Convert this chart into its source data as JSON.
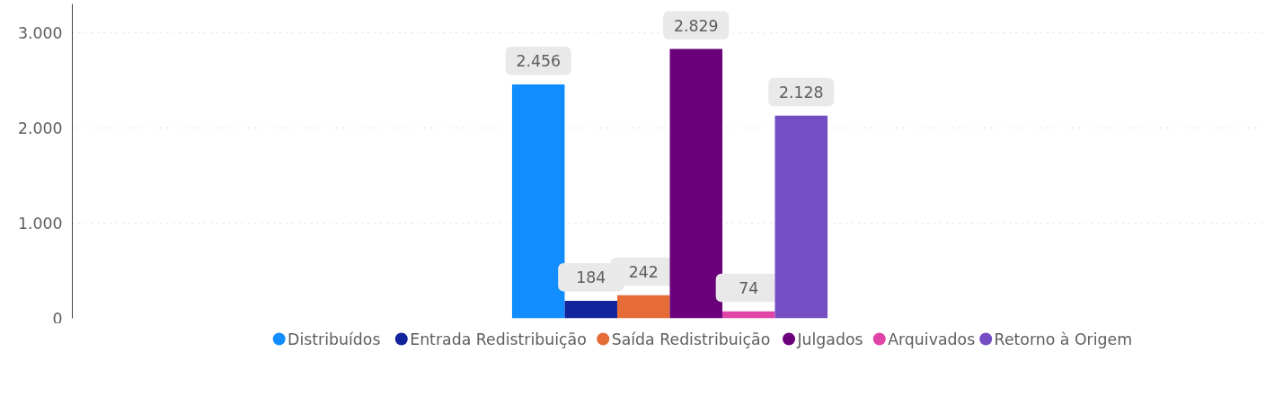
{
  "chart_data": {
    "type": "bar",
    "categories": [
      null
    ],
    "series": [
      {
        "name": "Distribuídos",
        "color": "#118dff",
        "values": [
          2456
        ],
        "value_labels": [
          "2.456"
        ]
      },
      {
        "name": "Entrada Redistribuição",
        "color": "#12239e",
        "values": [
          184
        ],
        "value_labels": [
          "184"
        ]
      },
      {
        "name": "Saída Redistribuição",
        "color": "#e66c37",
        "values": [
          242
        ],
        "value_labels": [
          "242"
        ]
      },
      {
        "name": "Julgados",
        "color": "#6b007b",
        "values": [
          2829
        ],
        "value_labels": [
          "2.829"
        ]
      },
      {
        "name": "Arquivados",
        "color": "#e044a7",
        "values": [
          74
        ],
        "value_labels": [
          "74"
        ]
      },
      {
        "name": "Retorno à Origem",
        "color": "#744ec2",
        "values": [
          2128
        ],
        "value_labels": [
          "2.128"
        ]
      }
    ],
    "ylim": [
      0,
      3300
    ],
    "yticks": [
      {
        "value": 0,
        "label": "0"
      },
      {
        "value": 1000,
        "label": "1.000"
      },
      {
        "value": 2000,
        "label": "2.000"
      },
      {
        "value": 3000,
        "label": "3.000"
      }
    ],
    "grid": "y",
    "legend": "bottom"
  }
}
